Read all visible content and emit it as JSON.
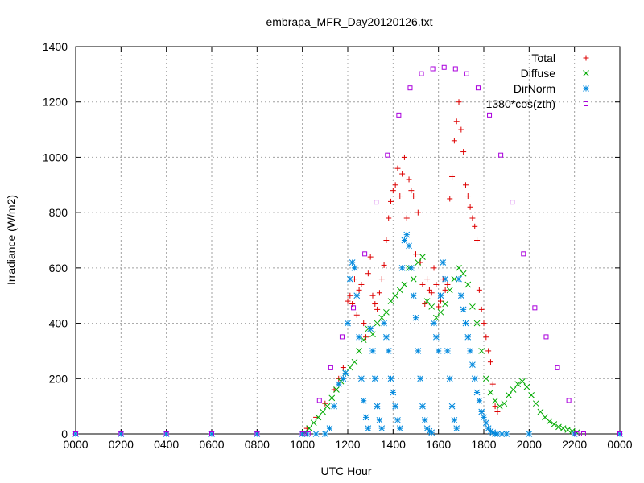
{
  "chart_data": {
    "type": "scatter",
    "title": "embrapa_MFR_Day20120126.txt",
    "xlabel": "UTC Hour",
    "ylabel": "Irradiance (W/m2)",
    "xlim": [
      0,
      2400
    ],
    "ylim": [
      0,
      1400
    ],
    "x_ticks": [
      "0000",
      "0200",
      "0400",
      "0600",
      "0800",
      "1000",
      "1200",
      "1400",
      "1600",
      "1800",
      "2000",
      "2200",
      "0000"
    ],
    "y_ticks": [
      0,
      200,
      400,
      600,
      800,
      1000,
      1200,
      1400
    ],
    "grid": true,
    "legend_position": "top-right",
    "series": [
      {
        "name": "Total",
        "marker": "plus",
        "color": "#dd0000",
        "x": [
          1020,
          1060,
          1100,
          1140,
          1160,
          1180,
          1200,
          1210,
          1220,
          1230,
          1240,
          1250,
          1260,
          1270,
          1280,
          1290,
          1300,
          1310,
          1320,
          1330,
          1340,
          1350,
          1360,
          1370,
          1380,
          1390,
          1400,
          1410,
          1420,
          1430,
          1440,
          1450,
          1460,
          1470,
          1480,
          1490,
          1500,
          1510,
          1520,
          1530,
          1540,
          1550,
          1560,
          1570,
          1580,
          1590,
          1600,
          1610,
          1620,
          1630,
          1640,
          1650,
          1660,
          1670,
          1680,
          1690,
          1700,
          1710,
          1720,
          1730,
          1740,
          1750,
          1760,
          1770,
          1780,
          1790,
          1800,
          1810,
          1820,
          1830,
          1840,
          1850,
          1860
        ],
        "y": [
          20,
          60,
          110,
          160,
          200,
          240,
          480,
          500,
          470,
          560,
          430,
          520,
          540,
          400,
          350,
          580,
          640,
          500,
          470,
          450,
          510,
          560,
          610,
          700,
          780,
          840,
          880,
          900,
          960,
          860,
          940,
          1000,
          780,
          920,
          880,
          860,
          650,
          800,
          620,
          540,
          470,
          560,
          520,
          510,
          600,
          540,
          460,
          480,
          560,
          520,
          540,
          850,
          930,
          1060,
          1130,
          1200,
          1100,
          1020,
          900,
          860,
          820,
          780,
          750,
          700,
          520,
          450,
          400,
          350,
          300,
          260,
          180,
          100,
          80
        ]
      },
      {
        "name": "Diffuse",
        "marker": "cross",
        "color": "#00aa00",
        "x": [
          1010,
          1030,
          1050,
          1070,
          1090,
          1110,
          1130,
          1150,
          1170,
          1190,
          1210,
          1230,
          1250,
          1270,
          1290,
          1310,
          1330,
          1350,
          1370,
          1390,
          1410,
          1430,
          1450,
          1470,
          1490,
          1510,
          1530,
          1550,
          1570,
          1590,
          1610,
          1630,
          1650,
          1670,
          1690,
          1710,
          1730,
          1750,
          1770,
          1790,
          1810,
          1830,
          1850,
          1870,
          1890,
          1910,
          1930,
          1950,
          1970,
          1990,
          2010,
          2030,
          2050,
          2070,
          2090,
          2110,
          2130,
          2150,
          2170,
          2190,
          2210
        ],
        "y": [
          5,
          20,
          40,
          60,
          80,
          100,
          130,
          160,
          190,
          220,
          240,
          260,
          300,
          340,
          380,
          360,
          400,
          420,
          440,
          480,
          500,
          520,
          540,
          600,
          560,
          620,
          640,
          480,
          460,
          420,
          440,
          470,
          520,
          560,
          600,
          580,
          540,
          460,
          400,
          300,
          200,
          150,
          120,
          100,
          110,
          140,
          160,
          180,
          190,
          170,
          140,
          110,
          80,
          60,
          45,
          35,
          25,
          20,
          15,
          10,
          5
        ]
      },
      {
        "name": "DirNorm",
        "marker": "star",
        "color": "#0088dd",
        "x": [
          0,
          200,
          400,
          600,
          800,
          1000,
          1020,
          1060,
          1100,
          1120,
          1140,
          1160,
          1180,
          1190,
          1200,
          1210,
          1220,
          1230,
          1240,
          1250,
          1260,
          1270,
          1280,
          1290,
          1300,
          1310,
          1320,
          1330,
          1340,
          1350,
          1360,
          1370,
          1380,
          1390,
          1400,
          1410,
          1420,
          1430,
          1440,
          1450,
          1460,
          1470,
          1480,
          1490,
          1500,
          1510,
          1520,
          1530,
          1540,
          1550,
          1560,
          1570,
          1580,
          1590,
          1600,
          1610,
          1620,
          1630,
          1640,
          1650,
          1660,
          1670,
          1680,
          1690,
          1700,
          1710,
          1720,
          1730,
          1740,
          1750,
          1760,
          1770,
          1780,
          1790,
          1800,
          1810,
          1820,
          1830,
          1840,
          1850,
          1860,
          1880,
          1900,
          2000,
          2200,
          2400
        ],
        "y": [
          0,
          0,
          0,
          0,
          0,
          0,
          0,
          0,
          0,
          20,
          100,
          180,
          200,
          220,
          400,
          560,
          620,
          600,
          500,
          350,
          200,
          120,
          60,
          20,
          380,
          300,
          200,
          100,
          50,
          20,
          400,
          350,
          300,
          200,
          150,
          100,
          50,
          20,
          600,
          700,
          720,
          680,
          600,
          500,
          420,
          300,
          200,
          100,
          50,
          20,
          10,
          5,
          400,
          350,
          300,
          500,
          620,
          560,
          300,
          200,
          100,
          50,
          20,
          560,
          500,
          450,
          400,
          350,
          300,
          250,
          200,
          150,
          120,
          80,
          60,
          40,
          20,
          10,
          5,
          0,
          0,
          0,
          0,
          0,
          0,
          0
        ]
      },
      {
        "name": "1380*cos(zth)",
        "marker": "square",
        "color": "#aa00dd",
        "x": [
          0,
          200,
          400,
          600,
          800,
          1000,
          1025,
          1075,
          1125,
          1175,
          1225,
          1275,
          1325,
          1375,
          1425,
          1475,
          1525,
          1575,
          1625,
          1675,
          1725,
          1775,
          1825,
          1875,
          1925,
          1975,
          2025,
          2075,
          2125,
          2175,
          2210,
          2240,
          2400
        ],
        "y": [
          0,
          0,
          0,
          0,
          0,
          0,
          0,
          121,
          239,
          351,
          456,
          651,
          838,
          1008,
          1153,
          1251,
          1302,
          1320,
          1325,
          1320,
          1302,
          1251,
          1153,
          1008,
          838,
          651,
          456,
          351,
          239,
          121,
          0,
          0,
          0
        ]
      }
    ]
  }
}
